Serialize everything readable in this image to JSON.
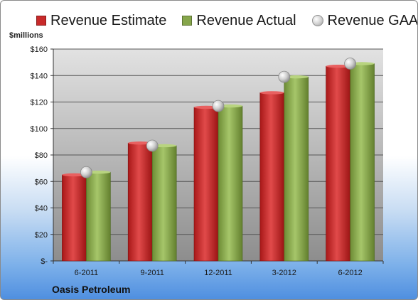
{
  "chart_data": {
    "type": "bar",
    "title": "",
    "xlabel": "",
    "ylabel": "$millions",
    "ylim": [
      0,
      160
    ],
    "yticks": [
      0,
      20,
      40,
      60,
      80,
      100,
      120,
      140,
      160
    ],
    "ytick_labels": [
      "$-",
      "$20",
      "$40",
      "$60",
      "$80",
      "$100",
      "$120",
      "$140",
      "$160"
    ],
    "categories": [
      "6-2011",
      "9-2011",
      "12-2011",
      "3-2012",
      "6-2012"
    ],
    "series": [
      {
        "name": "Revenue Estimate",
        "type": "bar",
        "color": "#c82a2a",
        "values": [
          65,
          89,
          116,
          127,
          147
        ]
      },
      {
        "name": "Revenue Actual",
        "type": "bar",
        "color": "#86a64b",
        "values": [
          67,
          87,
          117,
          139,
          149
        ]
      },
      {
        "name": "Revenue GAAP",
        "type": "marker",
        "color": "#bfbfbf",
        "values": [
          67,
          87,
          117,
          139,
          149
        ]
      }
    ],
    "grid": true,
    "legend_position": "top"
  },
  "annotations": {
    "unit_label": "$millions",
    "company": "Oasis Petroleum"
  }
}
